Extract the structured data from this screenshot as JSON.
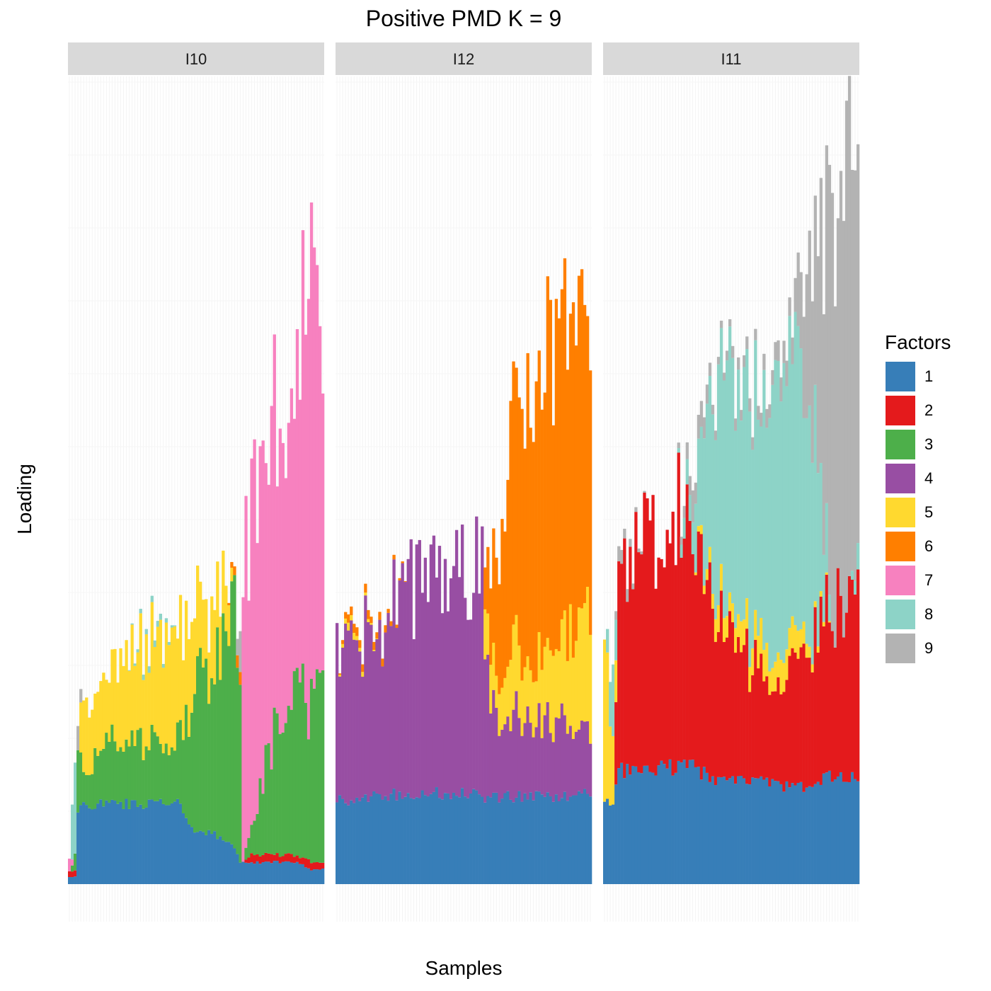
{
  "chart_data": {
    "type": "bar",
    "stacked": true,
    "title": "Positive PMD K = 9",
    "xlabel": "Samples",
    "ylabel": "Loading",
    "ylim": [
      0,
      1.06
    ],
    "grid": true,
    "legend_title": "Factors",
    "legend_position": "right",
    "factor_order_bottom_to_top": [
      "1",
      "2",
      "3",
      "4",
      "5",
      "6",
      "7",
      "8",
      "9"
    ],
    "factors": [
      {
        "name": "1",
        "color": "#377eb8"
      },
      {
        "name": "2",
        "color": "#e41a1c"
      },
      {
        "name": "3",
        "color": "#4daf4a"
      },
      {
        "name": "4",
        "color": "#984ea3"
      },
      {
        "name": "5",
        "color": "#ffd92f"
      },
      {
        "name": "6",
        "color": "#ff7f00"
      },
      {
        "name": "7",
        "color": "#f781bf"
      },
      {
        "name": "8",
        "color": "#8dd3c7"
      },
      {
        "name": "9",
        "color": "#b3b3b3"
      }
    ],
    "facets": [
      {
        "label": "I10",
        "n_samples": 90,
        "profile": [
          {
            "i": 0,
            "1": 0.01,
            "2": 0.01,
            "3": 0.0,
            "4": 0.0,
            "5": 0.0,
            "6": 0.0,
            "7": 0.02,
            "8": 0.0,
            "9": 0.0
          },
          {
            "i": 2,
            "1": 0.01,
            "2": 0.01,
            "3": 0.02,
            "4": 0.0,
            "5": 0.0,
            "6": 0.0,
            "7": 0.0,
            "8": 0.15,
            "9": 0.0
          },
          {
            "i": 3,
            "1": 0.1,
            "2": 0.0,
            "3": 0.1,
            "4": 0.0,
            "5": 0.0,
            "6": 0.0,
            "7": 0.0,
            "8": 0.0,
            "9": 0.04
          },
          {
            "i": 5,
            "1": 0.11,
            "2": 0.0,
            "3": 0.04,
            "4": 0.0,
            "5": 0.12,
            "6": 0.0,
            "7": 0.0,
            "8": 0.0,
            "9": 0.0
          },
          {
            "i": 10,
            "1": 0.11,
            "2": 0.0,
            "3": 0.08,
            "4": 0.0,
            "5": 0.08,
            "6": 0.0,
            "7": 0.0,
            "8": 0.0,
            "9": 0.0
          },
          {
            "i": 20,
            "1": 0.11,
            "2": 0.0,
            "3": 0.1,
            "4": 0.0,
            "5": 0.12,
            "6": 0.0,
            "7": 0.0,
            "8": 0.0,
            "9": 0.0
          },
          {
            "i": 30,
            "1": 0.11,
            "2": 0.0,
            "3": 0.08,
            "4": 0.0,
            "5": 0.14,
            "6": 0.0,
            "7": 0.0,
            "8": 0.01,
            "9": 0.0
          },
          {
            "i": 38,
            "1": 0.11,
            "2": 0.0,
            "3": 0.09,
            "4": 0.0,
            "5": 0.15,
            "6": 0.0,
            "7": 0.0,
            "8": 0.0,
            "9": 0.0
          },
          {
            "i": 45,
            "1": 0.07,
            "2": 0.0,
            "3": 0.2,
            "4": 0.0,
            "5": 0.1,
            "6": 0.0,
            "7": 0.0,
            "8": 0.0,
            "9": 0.0
          },
          {
            "i": 50,
            "1": 0.07,
            "2": 0.0,
            "3": 0.22,
            "4": 0.0,
            "5": 0.09,
            "6": 0.0,
            "7": 0.0,
            "8": 0.0,
            "9": 0.0
          },
          {
            "i": 55,
            "1": 0.06,
            "2": 0.0,
            "3": 0.27,
            "4": 0.0,
            "5": 0.07,
            "6": 0.0,
            "7": 0.0,
            "8": 0.0,
            "9": 0.0
          },
          {
            "i": 58,
            "1": 0.05,
            "2": 0.0,
            "3": 0.35,
            "4": 0.0,
            "5": 0.0,
            "6": 0.01,
            "7": 0.0,
            "8": 0.0,
            "9": 0.0
          },
          {
            "i": 60,
            "1": 0.03,
            "2": 0.0,
            "3": 0.3,
            "4": 0.0,
            "5": 0.0,
            "6": 0.02,
            "7": 0.0,
            "8": 0.0,
            "9": 0.05
          },
          {
            "i": 61,
            "1": 0.03,
            "2": 0.0,
            "3": 0.0,
            "4": 0.0,
            "5": 0.0,
            "6": 0.0,
            "7": 0.37,
            "8": 0.0,
            "9": 0.0
          },
          {
            "i": 64,
            "1": 0.03,
            "2": 0.01,
            "3": 0.04,
            "4": 0.0,
            "5": 0.0,
            "6": 0.0,
            "7": 0.42,
            "8": 0.0,
            "9": 0.0
          },
          {
            "i": 70,
            "1": 0.03,
            "2": 0.01,
            "3": 0.14,
            "4": 0.0,
            "5": 0.0,
            "6": 0.0,
            "7": 0.43,
            "8": 0.0,
            "9": 0.0
          },
          {
            "i": 75,
            "1": 0.03,
            "2": 0.01,
            "3": 0.2,
            "4": 0.0,
            "5": 0.0,
            "6": 0.0,
            "7": 0.39,
            "8": 0.0,
            "9": 0.0
          },
          {
            "i": 80,
            "1": 0.03,
            "2": 0.01,
            "3": 0.21,
            "4": 0.0,
            "5": 0.0,
            "6": 0.0,
            "7": 0.46,
            "8": 0.0,
            "9": 0.0
          },
          {
            "i": 85,
            "1": 0.02,
            "2": 0.01,
            "3": 0.22,
            "4": 0.0,
            "5": 0.0,
            "6": 0.0,
            "7": 0.54,
            "8": 0.0,
            "9": 0.0
          },
          {
            "i": 89,
            "1": 0.02,
            "2": 0.01,
            "3": 0.22,
            "4": 0.0,
            "5": 0.0,
            "6": 0.0,
            "7": 0.48,
            "8": 0.0,
            "9": 0.0
          }
        ]
      },
      {
        "label": "I12",
        "n_samples": 90,
        "profile": [
          {
            "i": 0,
            "1": 0.115,
            "2": 0.0,
            "3": 0.0,
            "4": 0.2,
            "5": 0.0,
            "6": 0.0,
            "7": 0.0,
            "8": 0.0,
            "9": 0.0
          },
          {
            "i": 4,
            "1": 0.115,
            "2": 0.0,
            "3": 0.0,
            "4": 0.21,
            "5": 0.01,
            "6": 0.01,
            "7": 0.0,
            "8": 0.0,
            "9": 0.0
          },
          {
            "i": 15,
            "1": 0.12,
            "2": 0.0,
            "3": 0.0,
            "4": 0.23,
            "5": 0.0,
            "6": 0.01,
            "7": 0.0,
            "8": 0.0,
            "9": 0.0
          },
          {
            "i": 25,
            "1": 0.125,
            "2": 0.0,
            "3": 0.0,
            "4": 0.29,
            "5": 0.0,
            "6": 0.0,
            "7": 0.0,
            "8": 0.0,
            "9": 0.0
          },
          {
            "i": 35,
            "1": 0.125,
            "2": 0.0,
            "3": 0.0,
            "4": 0.3,
            "5": 0.0,
            "6": 0.0,
            "7": 0.0,
            "8": 0.0,
            "9": 0.0
          },
          {
            "i": 51,
            "1": 0.125,
            "2": 0.0,
            "3": 0.0,
            "4": 0.31,
            "5": 0.0,
            "6": 0.0,
            "7": 0.0,
            "8": 0.0,
            "9": 0.0
          },
          {
            "i": 52,
            "1": 0.12,
            "2": 0.0,
            "3": 0.0,
            "4": 0.18,
            "5": 0.07,
            "6": 0.07,
            "7": 0.0,
            "8": 0.0,
            "9": 0.0
          },
          {
            "i": 56,
            "1": 0.12,
            "2": 0.0,
            "3": 0.0,
            "4": 0.12,
            "5": 0.05,
            "6": 0.15,
            "7": 0.0,
            "8": 0.0,
            "9": 0.0
          },
          {
            "i": 62,
            "1": 0.12,
            "2": 0.0,
            "3": 0.0,
            "4": 0.12,
            "5": 0.1,
            "6": 0.33,
            "7": 0.0,
            "8": 0.0,
            "9": 0.0
          },
          {
            "i": 70,
            "1": 0.12,
            "2": 0.0,
            "3": 0.0,
            "4": 0.1,
            "5": 0.08,
            "6": 0.41,
            "7": 0.0,
            "8": 0.0,
            "9": 0.0
          },
          {
            "i": 78,
            "1": 0.12,
            "2": 0.0,
            "3": 0.0,
            "4": 0.11,
            "5": 0.11,
            "6": 0.42,
            "7": 0.0,
            "8": 0.0,
            "9": 0.0
          },
          {
            "i": 84,
            "1": 0.125,
            "2": 0.0,
            "3": 0.0,
            "4": 0.09,
            "5": 0.15,
            "6": 0.41,
            "7": 0.0,
            "8": 0.0,
            "9": 0.0
          },
          {
            "i": 89,
            "1": 0.125,
            "2": 0.0,
            "3": 0.0,
            "4": 0.09,
            "5": 0.18,
            "6": 0.44,
            "7": 0.0,
            "8": 0.0,
            "9": 0.0
          }
        ]
      },
      {
        "label": "I11",
        "n_samples": 90,
        "profile": [
          {
            "i": 0,
            "1": 0.115,
            "2": 0.0,
            "3": 0.0,
            "4": 0.0,
            "5": 0.19,
            "6": 0.0,
            "7": 0.0,
            "8": 0.0,
            "9": 0.0
          },
          {
            "i": 3,
            "1": 0.115,
            "2": 0.0,
            "3": 0.0,
            "4": 0.0,
            "5": 0.11,
            "6": 0.0,
            "7": 0.0,
            "8": 0.09,
            "9": 0.0
          },
          {
            "i": 5,
            "1": 0.155,
            "2": 0.25,
            "3": 0.0,
            "4": 0.0,
            "5": 0.0,
            "6": 0.0,
            "7": 0.0,
            "8": 0.0,
            "9": 0.02
          },
          {
            "i": 15,
            "1": 0.16,
            "2": 0.32,
            "3": 0.0,
            "4": 0.0,
            "5": 0.0,
            "6": 0.0,
            "7": 0.0,
            "8": 0.0,
            "9": 0.0
          },
          {
            "i": 25,
            "1": 0.16,
            "2": 0.35,
            "3": 0.0,
            "4": 0.0,
            "5": 0.0,
            "6": 0.0,
            "7": 0.0,
            "8": 0.0,
            "9": 0.0
          },
          {
            "i": 31,
            "1": 0.16,
            "2": 0.32,
            "3": 0.0,
            "4": 0.0,
            "5": 0.0,
            "6": 0.0,
            "7": 0.0,
            "8": 0.05,
            "9": 0.04
          },
          {
            "i": 40,
            "1": 0.14,
            "2": 0.22,
            "3": 0.0,
            "4": 0.0,
            "5": 0.03,
            "6": 0.0,
            "7": 0.0,
            "8": 0.32,
            "9": 0.01
          },
          {
            "i": 55,
            "1": 0.14,
            "2": 0.15,
            "3": 0.0,
            "4": 0.0,
            "5": 0.04,
            "6": 0.0,
            "7": 0.0,
            "8": 0.34,
            "9": 0.02
          },
          {
            "i": 66,
            "1": 0.13,
            "2": 0.15,
            "3": 0.0,
            "4": 0.0,
            "5": 0.04,
            "6": 0.0,
            "7": 0.0,
            "8": 0.38,
            "9": 0.03
          },
          {
            "i": 74,
            "1": 0.14,
            "2": 0.2,
            "3": 0.0,
            "4": 0.0,
            "5": 0.01,
            "6": 0.0,
            "7": 0.0,
            "8": 0.24,
            "9": 0.25
          },
          {
            "i": 80,
            "1": 0.15,
            "2": 0.23,
            "3": 0.0,
            "4": 0.0,
            "5": 0.0,
            "6": 0.0,
            "7": 0.0,
            "8": 0.0,
            "9": 0.55
          },
          {
            "i": 86,
            "1": 0.15,
            "2": 0.25,
            "3": 0.0,
            "4": 0.0,
            "5": 0.0,
            "6": 0.0,
            "7": 0.0,
            "8": 0.0,
            "9": 0.65
          },
          {
            "i": 89,
            "1": 0.15,
            "2": 0.25,
            "3": 0.0,
            "4": 0.0,
            "5": 0.0,
            "6": 0.0,
            "7": 0.0,
            "8": 0.03,
            "9": 0.6
          }
        ]
      }
    ]
  }
}
